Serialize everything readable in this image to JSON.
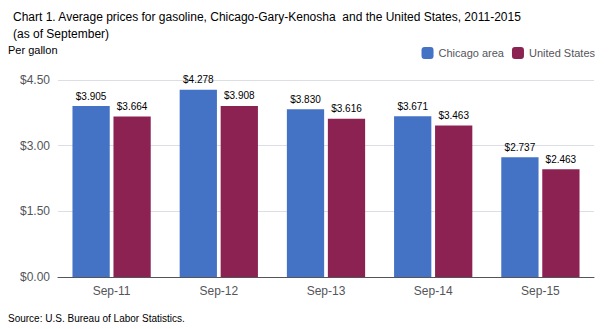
{
  "chart_data": {
    "type": "bar",
    "title": "Chart 1. Average prices for gasoline, Chicago-Gary-Kenosha  and the United States, 2011-2015",
    "subtitle": "(as of September)",
    "ylabel": "Per gallon",
    "source": "Source: U.S. Bureau of Labor Statistics.",
    "categories": [
      "Sep-11",
      "Sep-12",
      "Sep-13",
      "Sep-14",
      "Sep-15"
    ],
    "series": [
      {
        "name": "Chicago area",
        "color": "#4472C4",
        "values": [
          3.905,
          4.278,
          3.83,
          3.671,
          2.737
        ],
        "value_labels": [
          "$3.905",
          "$4.278",
          "$3.830",
          "$3.671",
          "$2.737"
        ]
      },
      {
        "name": "United States",
        "color": "#8B2252",
        "values": [
          3.664,
          3.908,
          3.616,
          3.463,
          2.463
        ],
        "value_labels": [
          "$3.664",
          "$3.908",
          "$3.616",
          "$3.463",
          "$2.463"
        ]
      }
    ],
    "ylim": [
      0,
      4.5
    ],
    "yticks": [
      {
        "value": 0,
        "label": "$0.00"
      },
      {
        "value": 1.5,
        "label": "$1.50"
      },
      {
        "value": 3,
        "label": "$3.00"
      },
      {
        "value": 4.5,
        "label": "$4.50"
      }
    ],
    "grid": true,
    "legend": "top-right",
    "data_labels": true
  }
}
